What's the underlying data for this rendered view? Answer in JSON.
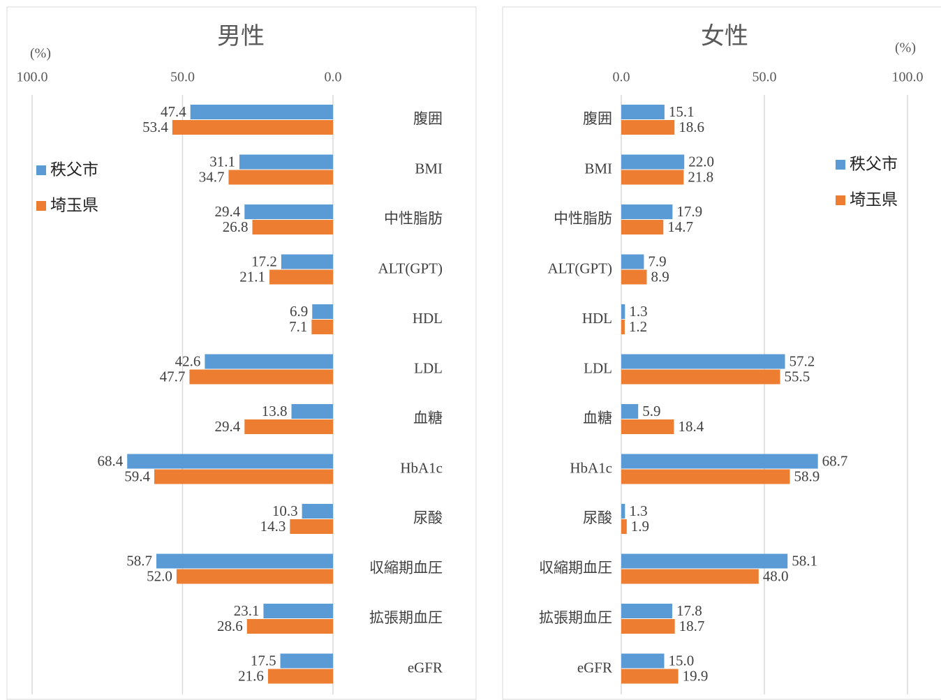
{
  "chart_data": [
    {
      "type": "barh",
      "title": "男性",
      "unit_label": "(%)",
      "x_reversed": true,
      "legend": "left",
      "categories": [
        "腹囲",
        "BMI",
        "中性脂肪",
        "ALT(GPT)",
        "HDL",
        "LDL",
        "血糖",
        "HbA1c",
        "尿酸",
        "収縮期血圧",
        "拡張期血圧",
        "eGFR"
      ],
      "series": [
        {
          "name": "秩父市",
          "color": "#5b9bd5",
          "values": [
            47.4,
            31.1,
            29.4,
            17.2,
            6.9,
            42.6,
            13.8,
            68.4,
            10.3,
            58.7,
            23.1,
            17.5
          ],
          "value_labels": [
            "47.4",
            "31.1",
            "29.4",
            "17.2",
            "6.9",
            "42.6",
            "13.8",
            "68.4",
            "10.3",
            "58.7",
            "23.1",
            "17.5"
          ]
        },
        {
          "name": "埼玉県",
          "color": "#ed7d31",
          "values": [
            53.4,
            34.7,
            26.8,
            21.1,
            7.1,
            47.7,
            29.4,
            59.4,
            14.3,
            52.0,
            28.6,
            21.6
          ],
          "value_labels": [
            "53.4",
            "34.7",
            "26.8",
            "21.1",
            "7.1",
            "47.7",
            "29.4",
            "59.4",
            "14.3",
            "52.0",
            "28.6",
            "21.6"
          ]
        }
      ],
      "xlim": [
        0,
        100
      ],
      "xticks": [
        {
          "value": 0,
          "label": "0.0"
        },
        {
          "value": 50,
          "label": "50.0"
        },
        {
          "value": 100,
          "label": "100.0"
        }
      ],
      "grid": true
    },
    {
      "type": "barh",
      "title": "女性",
      "unit_label": "(%)",
      "x_reversed": false,
      "legend": "right",
      "categories": [
        "腹囲",
        "BMI",
        "中性脂肪",
        "ALT(GPT)",
        "HDL",
        "LDL",
        "血糖",
        "HbA1c",
        "尿酸",
        "収縮期血圧",
        "拡張期血圧",
        "eGFR"
      ],
      "series": [
        {
          "name": "秩父市",
          "color": "#5b9bd5",
          "values": [
            15.1,
            22.0,
            17.9,
            7.9,
            1.3,
            57.2,
            5.9,
            68.7,
            1.3,
            58.1,
            17.8,
            15.0
          ],
          "value_labels": [
            "15.1",
            "22.0",
            "17.9",
            "7.9",
            "1.3",
            "57.2",
            "5.9",
            "68.7",
            "1.3",
            "58.1",
            "17.8",
            "15.0"
          ]
        },
        {
          "name": "埼玉県",
          "color": "#ed7d31",
          "values": [
            18.6,
            21.8,
            14.7,
            8.9,
            1.2,
            55.5,
            18.4,
            58.9,
            1.9,
            48.0,
            18.7,
            19.9
          ],
          "value_labels": [
            "18.6",
            "21.8",
            "14.7",
            "8.9",
            "1.2",
            "55.5",
            "18.4",
            "58.9",
            "1.9",
            "48.0",
            "18.7",
            "19.9"
          ]
        }
      ],
      "xlim": [
        0,
        100
      ],
      "xticks": [
        {
          "value": 0,
          "label": "0.0"
        },
        {
          "value": 50,
          "label": "50.0"
        },
        {
          "value": 100,
          "label": "100.0"
        }
      ],
      "grid": true
    }
  ]
}
